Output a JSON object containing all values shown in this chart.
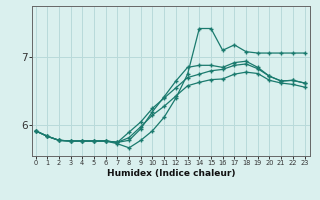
{
  "xlabel": "Humidex (Indice chaleur)",
  "background_color": "#daf0ee",
  "line_color": "#1a7a6e",
  "grid_color": "#b8dada",
  "x_ticks": [
    0,
    1,
    2,
    3,
    4,
    5,
    6,
    7,
    8,
    9,
    10,
    11,
    12,
    13,
    14,
    15,
    16,
    17,
    18,
    19,
    20,
    21,
    22,
    23
  ],
  "y_ticks": [
    6,
    7
  ],
  "ylim": [
    5.55,
    7.75
  ],
  "xlim": [
    -0.3,
    23.5
  ],
  "lines": [
    [
      5.92,
      5.84,
      5.78,
      5.77,
      5.77,
      5.77,
      5.77,
      5.75,
      5.78,
      5.95,
      6.2,
      6.42,
      6.65,
      6.85,
      6.88,
      6.88,
      6.85,
      6.92,
      6.94,
      6.85,
      6.72,
      6.65,
      6.66,
      6.62
    ],
    [
      5.92,
      5.84,
      5.78,
      5.77,
      5.77,
      5.77,
      5.77,
      5.75,
      5.9,
      6.05,
      6.25,
      6.4,
      6.55,
      6.7,
      6.75,
      6.8,
      6.82,
      6.88,
      6.9,
      6.83,
      6.72,
      6.65,
      6.66,
      6.62
    ],
    [
      5.92,
      5.84,
      5.78,
      5.77,
      5.77,
      5.77,
      5.77,
      5.75,
      5.82,
      5.98,
      6.15,
      6.28,
      6.43,
      6.58,
      6.63,
      6.67,
      6.68,
      6.75,
      6.78,
      6.76,
      6.66,
      6.62,
      6.6,
      6.56
    ],
    [
      5.92,
      5.84,
      5.78,
      5.77,
      5.77,
      5.77,
      5.77,
      5.73,
      5.67,
      5.78,
      5.92,
      6.12,
      6.4,
      6.75,
      7.42,
      7.42,
      7.1,
      7.18,
      7.08,
      7.06,
      7.06,
      7.06,
      7.06,
      7.06
    ]
  ]
}
